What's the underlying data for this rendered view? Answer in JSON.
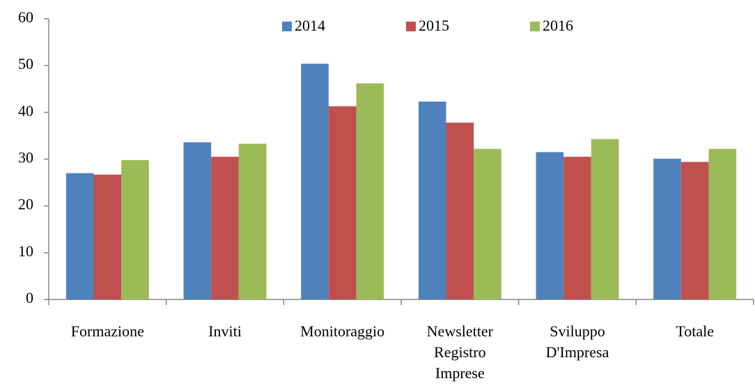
{
  "chart_data": {
    "type": "bar",
    "categories": [
      "Formazione",
      "Inviti",
      "Monitoraggio",
      "Newsletter Registro Imprese",
      "Sviluppo D'Impresa",
      "Totale"
    ],
    "series": [
      {
        "name": "2014",
        "color": "#4f81bd",
        "values": [
          27,
          33.6,
          50.4,
          42.3,
          31.5,
          30.1
        ]
      },
      {
        "name": "2015",
        "color": "#c0504d",
        "values": [
          26.7,
          30.5,
          41.3,
          37.8,
          30.5,
          29.4
        ]
      },
      {
        "name": "2016",
        "color": "#9bbb59",
        "values": [
          29.8,
          33.3,
          46.2,
          32.2,
          34.3,
          32.2
        ]
      }
    ],
    "ylim": [
      0,
      60
    ],
    "yticks": [
      0,
      10,
      20,
      30,
      40,
      50,
      60
    ],
    "grid": false,
    "legend": "top"
  }
}
